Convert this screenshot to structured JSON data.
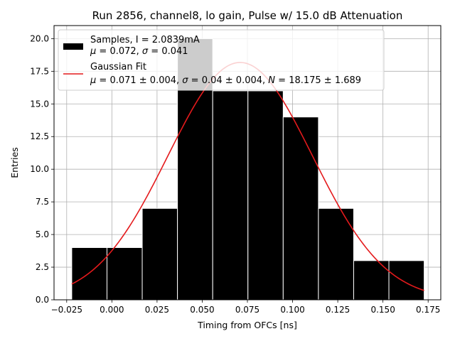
{
  "chart_data": {
    "type": "bar",
    "title": "Run 2856, channel8, lo gain, Pulse w/ 15.0 dB Attenuation",
    "xlabel": "Timing from OFCs [ns]",
    "ylabel": "Entries",
    "xlim": [
      -0.032,
      0.182
    ],
    "ylim": [
      0,
      21
    ],
    "xticks": [
      -0.025,
      0.0,
      0.025,
      0.05,
      0.075,
      0.1,
      0.125,
      0.15,
      0.175
    ],
    "xtick_labels": [
      "−0.025",
      "0.000",
      "0.025",
      "0.050",
      "0.075",
      "0.100",
      "0.125",
      "0.150",
      "0.175"
    ],
    "yticks": [
      0,
      2.5,
      5,
      7.5,
      10,
      12.5,
      15,
      17.5,
      20
    ],
    "ytick_labels": [
      "0.0",
      "2.5",
      "5.0",
      "7.5",
      "10.0",
      "12.5",
      "15.0",
      "17.5",
      "20.0"
    ],
    "grid": true,
    "legend_position": "top-left",
    "histogram": {
      "bin_edges": [
        -0.0222,
        -0.0027,
        0.0168,
        0.0363,
        0.0558,
        0.0753,
        0.0948,
        0.1143,
        0.1338,
        0.1533,
        0.1728
      ],
      "counts": [
        4,
        4,
        7,
        20,
        16,
        16,
        14,
        7,
        3,
        3
      ],
      "color": "#000000",
      "edge_color": "#ffffff"
    },
    "fit": {
      "mu": 0.071,
      "sigma": 0.04,
      "N": 18.175,
      "x_range": [
        -0.0222,
        0.1728
      ],
      "color": "#e41a1c"
    },
    "legend": [
      {
        "type": "patch",
        "color": "#000000",
        "line1": "Samples, I = 2.0839mA",
        "line2_parts": [
          "μ",
          " = 0.072, ",
          "σ",
          " = 0.041"
        ]
      },
      {
        "type": "line",
        "color": "#e41a1c",
        "line1": "Gaussian Fit",
        "line2_parts": [
          "μ",
          " = 0.071 ± 0.004, ",
          "σ",
          " = 0.04 ± 0.004, ",
          "N",
          " = 18.175 ± 1.689"
        ]
      }
    ]
  }
}
